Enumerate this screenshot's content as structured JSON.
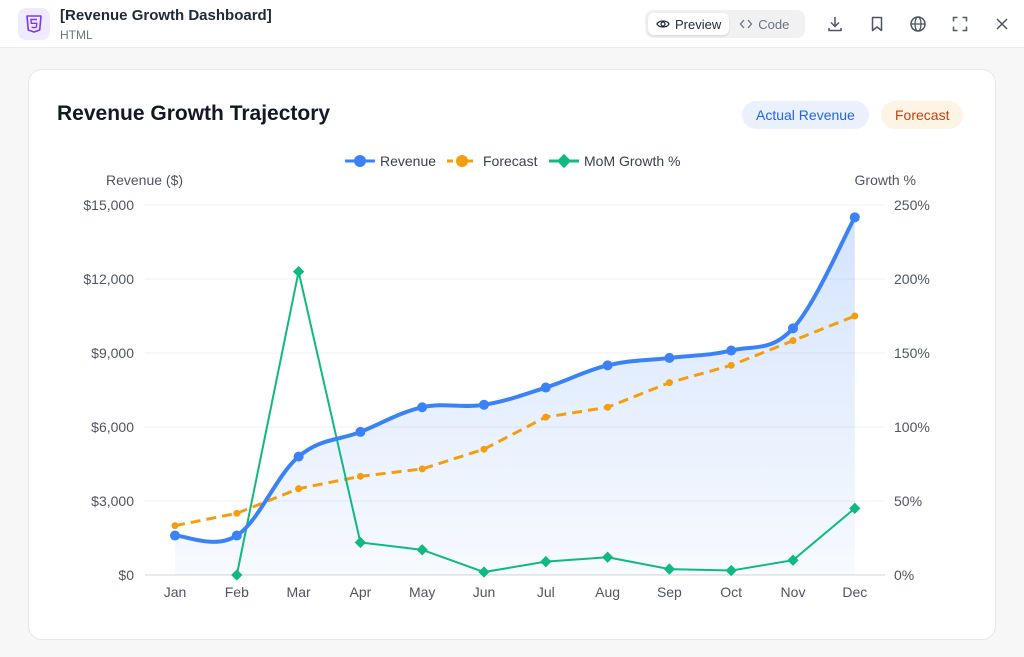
{
  "header": {
    "title": "[Revenue Growth Dashboard]",
    "subtitle": "HTML",
    "view_toggle": {
      "preview_label": "Preview",
      "code_label": "Code"
    },
    "icons": [
      "download-icon",
      "bookmark-icon",
      "globe-icon",
      "fullscreen-icon",
      "close-icon"
    ]
  },
  "card": {
    "title": "Revenue Growth Trajectory",
    "pills": {
      "actual": "Actual Revenue",
      "forecast": "Forecast"
    }
  },
  "colors": {
    "revenue": "#3b82f6",
    "forecast": "#f59e0b",
    "growth": "#10b981",
    "accent_purple": "#7c3aed"
  },
  "chart_data": {
    "type": "line",
    "categories": [
      "Jan",
      "Feb",
      "Mar",
      "Apr",
      "May",
      "Jun",
      "Jul",
      "Aug",
      "Sep",
      "Oct",
      "Nov",
      "Dec"
    ],
    "series": [
      {
        "name": "Revenue",
        "axis": "left",
        "style": "solid-area",
        "values": [
          1600,
          1600,
          4800,
          5800,
          6800,
          6900,
          7600,
          8500,
          8800,
          9100,
          10000,
          14500
        ]
      },
      {
        "name": "Forecast",
        "axis": "left",
        "style": "dashed",
        "values": [
          2000,
          2500,
          3500,
          4000,
          4300,
          5100,
          6400,
          6800,
          7800,
          8500,
          9500,
          10500
        ]
      },
      {
        "name": "MoM Growth %",
        "axis": "right",
        "style": "solid",
        "values": [
          null,
          0,
          205,
          22,
          17,
          2,
          9,
          12,
          4,
          3,
          10,
          45
        ]
      }
    ],
    "left_axis": {
      "label": "Revenue ($)",
      "ylim": [
        0,
        15000
      ],
      "ticks": [
        "$0",
        "$3,000",
        "$6,000",
        "$9,000",
        "$12,000",
        "$15,000"
      ]
    },
    "right_axis": {
      "label": "Growth %",
      "ylim": [
        0,
        250
      ],
      "ticks": [
        "0%",
        "50%",
        "100%",
        "150%",
        "200%",
        "250%"
      ]
    },
    "legend": "top-center",
    "grid": true
  }
}
